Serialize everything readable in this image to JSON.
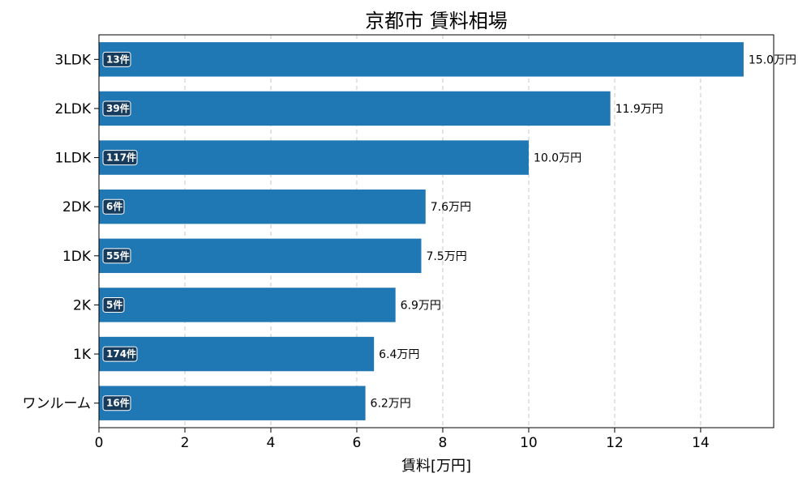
{
  "chart_data": {
    "type": "bar",
    "orientation": "horizontal",
    "title": "京都市 賃料相場",
    "xlabel": "賃料[万円]",
    "ylabel": "",
    "categories": [
      "3LDK",
      "2LDK",
      "1LDK",
      "2DK",
      "1DK",
      "2K",
      "1K",
      "ワンルーム"
    ],
    "values": [
      15.0,
      11.9,
      10.0,
      7.6,
      7.5,
      6.9,
      6.4,
      6.2
    ],
    "value_labels": [
      "15.0万円",
      "11.9万円",
      "10.0万円",
      "7.6万円",
      "7.5万円",
      "6.9万円",
      "6.4万円",
      "6.2万円"
    ],
    "counts": [
      "13件",
      "39件",
      "117件",
      "6件",
      "55件",
      "5件",
      "174件",
      "16件"
    ],
    "xlim": [
      0,
      15.7
    ],
    "xticks": [
      0,
      2,
      4,
      6,
      8,
      10,
      12,
      14
    ],
    "grid": "vertical-dashed",
    "colors": {
      "bar": "#1f77b4",
      "badge": "#173b5c"
    }
  }
}
